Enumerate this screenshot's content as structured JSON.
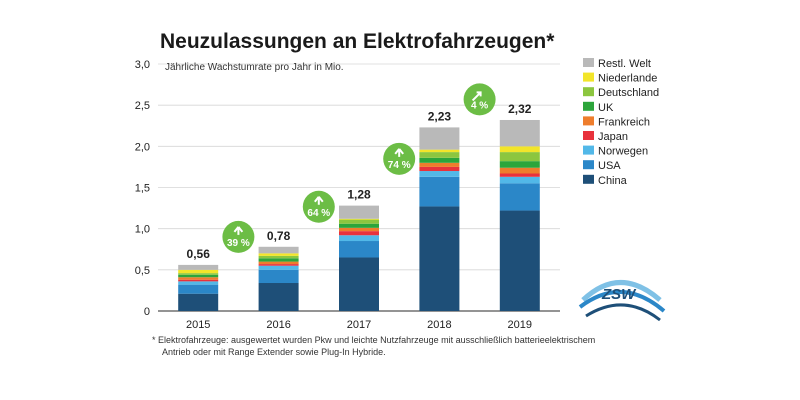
{
  "title": "Neuzulassungen an Elektrofahrzeugen*",
  "footnote": {
    "line1": "* Elektrofahrzeuge: ausgewertet wurden Pkw und leichte Nutzfahrzeuge mit ausschließlich batterieelektrischem",
    "line2": "Antrieb oder mit Range Extender sowie Plug-In Hybride."
  },
  "logo_text": "ZSW",
  "colors": {
    "arrow_badge": "#6cbd45",
    "grid": "#d6d6d6",
    "axis": "#555555"
  },
  "chart_data": {
    "type": "bar",
    "stacked": true,
    "subtitle": "Jährliche Wachstumrate pro Jahr in Mio.",
    "categories": [
      "2015",
      "2016",
      "2017",
      "2018",
      "2019"
    ],
    "yticks": [
      "0",
      "0,5",
      "1,0",
      "1,5",
      "2,0",
      "2,5",
      "3,0"
    ],
    "ylim": [
      0,
      3.0
    ],
    "totals": [
      "0,56",
      "0,78",
      "1,28",
      "2,23",
      "2,32"
    ],
    "total_values": [
      0.56,
      0.78,
      1.28,
      2.23,
      2.32
    ],
    "growth_labels": [
      "39 %",
      "64 %",
      "74 %",
      "4 %"
    ],
    "grid": true,
    "legend_position": "right",
    "series": [
      {
        "name": "China",
        "color": "#1e4f78",
        "values": [
          0.21,
          0.34,
          0.65,
          1.27,
          1.22
        ]
      },
      {
        "name": "USA",
        "color": "#2b87c8",
        "values": [
          0.11,
          0.16,
          0.2,
          0.36,
          0.33
        ]
      },
      {
        "name": "Norwegen",
        "color": "#52b8e8",
        "values": [
          0.04,
          0.05,
          0.07,
          0.07,
          0.08
        ]
      },
      {
        "name": "Japan",
        "color": "#e8323c",
        "values": [
          0.02,
          0.02,
          0.05,
          0.05,
          0.04
        ]
      },
      {
        "name": "Frankreich",
        "color": "#ee7d2c",
        "values": [
          0.03,
          0.03,
          0.04,
          0.05,
          0.07
        ]
      },
      {
        "name": "UK",
        "color": "#2ca53b",
        "values": [
          0.03,
          0.04,
          0.05,
          0.06,
          0.08
        ]
      },
      {
        "name": "Deutschland",
        "color": "#8cc63f",
        "values": [
          0.02,
          0.03,
          0.05,
          0.07,
          0.11
        ]
      },
      {
        "name": "Niederlande",
        "color": "#f2e52a",
        "values": [
          0.04,
          0.03,
          0.01,
          0.03,
          0.07
        ]
      },
      {
        "name": "Restl. Welt",
        "color": "#b9b9b9",
        "values": [
          0.06,
          0.08,
          0.16,
          0.27,
          0.32
        ]
      }
    ]
  }
}
